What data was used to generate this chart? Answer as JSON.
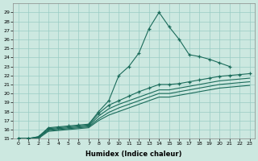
{
  "xlabel": "Humidex (Indice chaleur)",
  "bg_color": "#cce8e0",
  "grid_color": "#99ccc4",
  "line_color": "#1a6b5a",
  "xlim": [
    -0.5,
    23.5
  ],
  "ylim": [
    15,
    30
  ],
  "yticks": [
    15,
    16,
    17,
    18,
    19,
    20,
    21,
    22,
    23,
    24,
    25,
    26,
    27,
    28,
    29
  ],
  "xticks": [
    0,
    1,
    2,
    3,
    4,
    5,
    6,
    7,
    8,
    9,
    10,
    11,
    12,
    13,
    14,
    15,
    16,
    17,
    18,
    19,
    20,
    21,
    22,
    23
  ],
  "lines": [
    {
      "x": [
        0,
        1,
        2,
        3,
        4,
        5,
        6,
        7,
        8,
        9,
        10,
        11,
        12,
        13,
        14,
        15,
        16,
        17,
        18,
        19,
        20,
        21
      ],
      "y": [
        15.0,
        15.0,
        15.2,
        16.2,
        16.3,
        16.4,
        16.5,
        16.6,
        18.0,
        19.2,
        22.0,
        23.0,
        24.5,
        27.2,
        29.0,
        27.4,
        26.0,
        24.3,
        24.1,
        23.8,
        23.4,
        23.0
      ],
      "marker": true
    },
    {
      "x": [
        0,
        1,
        2,
        3,
        4,
        5,
        6,
        7,
        8,
        9,
        10,
        11,
        12,
        13,
        14,
        15,
        16,
        17,
        18,
        19,
        20,
        21,
        22,
        23
      ],
      "y": [
        15.0,
        15.0,
        15.2,
        16.1,
        16.2,
        16.3,
        16.4,
        16.5,
        17.8,
        18.7,
        19.2,
        19.7,
        20.2,
        20.6,
        21.0,
        21.0,
        21.1,
        21.3,
        21.5,
        21.7,
        21.9,
        22.0,
        22.1,
        22.2
      ],
      "marker": true
    },
    {
      "x": [
        0,
        1,
        2,
        3,
        4,
        5,
        6,
        7,
        8,
        9,
        10,
        11,
        12,
        13,
        14,
        15,
        16,
        17,
        18,
        19,
        20,
        21,
        22,
        23
      ],
      "y": [
        15.0,
        15.0,
        15.1,
        16.0,
        16.1,
        16.2,
        16.3,
        16.4,
        17.5,
        18.3,
        18.8,
        19.2,
        19.6,
        20.0,
        20.4,
        20.4,
        20.6,
        20.8,
        21.0,
        21.2,
        21.4,
        21.5,
        21.6,
        21.7
      ],
      "marker": false
    },
    {
      "x": [
        0,
        1,
        2,
        3,
        4,
        5,
        6,
        7,
        8,
        9,
        10,
        11,
        12,
        13,
        14,
        15,
        16,
        17,
        18,
        19,
        20,
        21,
        22,
        23
      ],
      "y": [
        15.0,
        15.0,
        15.1,
        15.9,
        16.0,
        16.1,
        16.2,
        16.3,
        17.2,
        17.9,
        18.4,
        18.8,
        19.2,
        19.6,
        20.0,
        20.0,
        20.2,
        20.4,
        20.6,
        20.8,
        21.0,
        21.1,
        21.2,
        21.3
      ],
      "marker": false
    },
    {
      "x": [
        0,
        1,
        2,
        3,
        4,
        5,
        6,
        7,
        8,
        9,
        10,
        11,
        12,
        13,
        14,
        15,
        16,
        17,
        18,
        19,
        20,
        21,
        22,
        23
      ],
      "y": [
        15.0,
        15.0,
        15.0,
        15.8,
        15.9,
        16.0,
        16.1,
        16.2,
        17.0,
        17.6,
        18.0,
        18.4,
        18.8,
        19.2,
        19.6,
        19.6,
        19.8,
        20.0,
        20.2,
        20.4,
        20.6,
        20.7,
        20.8,
        20.9
      ],
      "marker": false
    }
  ]
}
